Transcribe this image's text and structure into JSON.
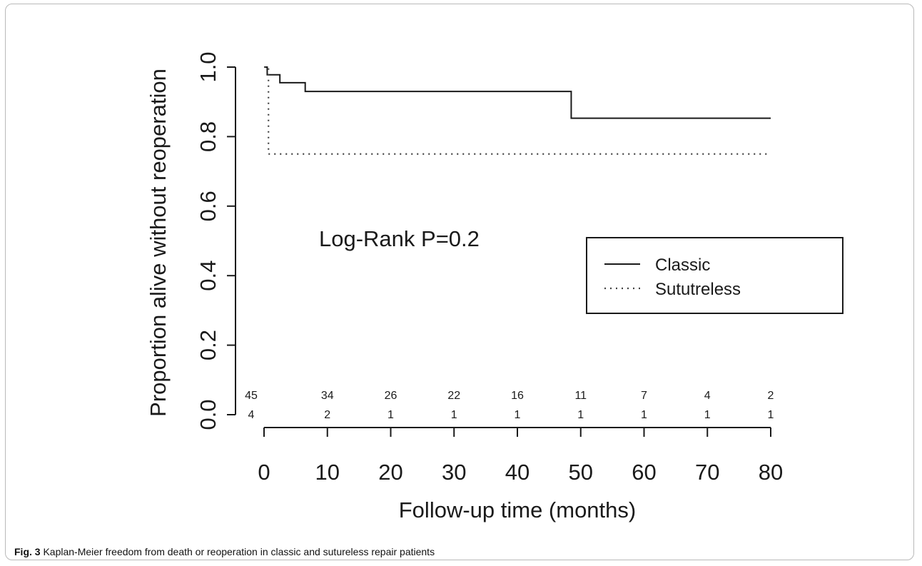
{
  "chart_data": {
    "type": "line",
    "subtype": "kaplan-meier step",
    "ylabel": "Proportion alive without reoperation",
    "xlabel": "Follow-up time (months)",
    "xlim": [
      0,
      80
    ],
    "ylim": [
      0,
      1
    ],
    "xticks": [
      "0",
      "10",
      "20",
      "30",
      "40",
      "50",
      "60",
      "70",
      "80"
    ],
    "yticks": [
      "0.0",
      "0.2",
      "0.4",
      "0.6",
      "0.8",
      "1.0"
    ],
    "grid": false,
    "legend_position": "right",
    "annotation": "Log-Rank P=0.2",
    "series": [
      {
        "name": "Classic",
        "line_style": "solid",
        "color": "#1a1a1a",
        "steps": [
          {
            "x": 0,
            "y": 1.0
          },
          {
            "x": 0.5,
            "y": 0.978
          },
          {
            "x": 2.5,
            "y": 0.955
          },
          {
            "x": 6.5,
            "y": 0.93
          },
          {
            "x": 48.5,
            "y": 0.853
          },
          {
            "x": 80,
            "y": 0.853
          }
        ],
        "at_risk": [
          "45",
          "34",
          "26",
          "22",
          "16",
          "11",
          "7",
          "4",
          "2"
        ]
      },
      {
        "name": "Sututreless",
        "line_style": "dotted",
        "color": "#444444",
        "steps": [
          {
            "x": 0,
            "y": 1.0
          },
          {
            "x": 0.7,
            "y": 0.75
          },
          {
            "x": 80,
            "y": 0.75
          }
        ],
        "at_risk": [
          "4",
          "2",
          "1",
          "1",
          "1",
          "1",
          "1",
          "1",
          "1"
        ]
      }
    ]
  },
  "caption": {
    "label": "Fig. 3",
    "text": " Kaplan-Meier freedom from death or reoperation in classic and sutureless repair patients"
  }
}
